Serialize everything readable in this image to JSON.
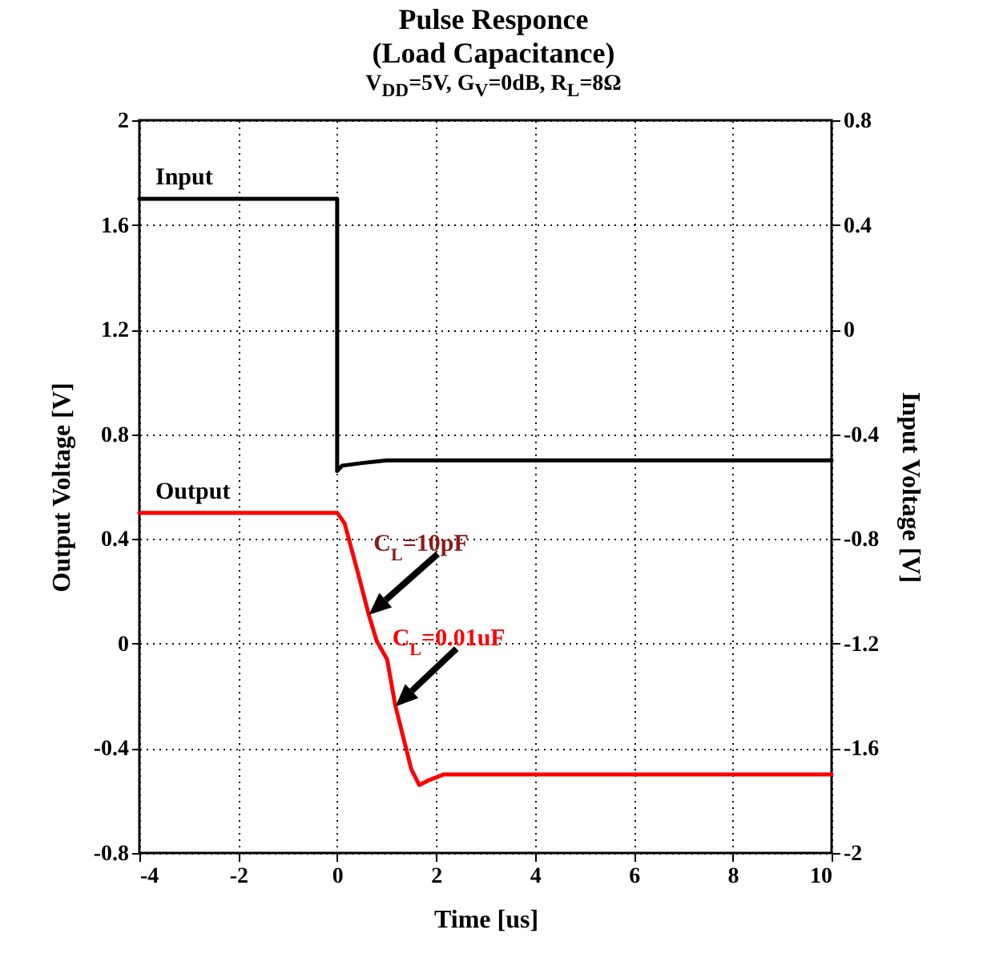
{
  "chart_data": {
    "type": "line",
    "title": "Pulse Responce\n(Load Capacitance)",
    "subtitle": "V$_{DD}$=5V, G$_{V}$=0dB, R$_{L}$=8Ω",
    "xlabel": "Time [us]",
    "ylabel": "Output Voltage [V]",
    "y2label": "Input Voltage [V]",
    "xlim": [
      -4,
      10
    ],
    "xticks": [
      -4,
      -2,
      0,
      2,
      4,
      6,
      8,
      10
    ],
    "ylim": [
      -0.8,
      2
    ],
    "yticks": [
      -0.8,
      -0.4,
      0,
      0.4,
      0.8,
      1.2,
      1.6,
      2
    ],
    "y2lim": [
      -2,
      0.8
    ],
    "y2ticks": [
      -2,
      -1.6,
      -1.2,
      -0.8,
      -0.4,
      0,
      0.4,
      0.8
    ],
    "grid": true,
    "legend": false,
    "annotations": [
      {
        "text": "C$_{L}$=10pF",
        "x": 0.64,
        "y": 0.11
      },
      {
        "text": "C$_{L}$=0.01uF",
        "x": 1.18,
        "y": -0.24
      }
    ],
    "series": [
      {
        "name": "Input",
        "color": "#000000",
        "axis": "y2",
        "x": [
          -4,
          0,
          0,
          0.1,
          0.5,
          1,
          2,
          10
        ],
        "values": [
          0.5,
          0.5,
          -0.54,
          -0.52,
          -0.51,
          -0.5,
          -0.5,
          -0.5
        ]
      },
      {
        "name": "Output",
        "color": "#ff0000",
        "x": [
          -4,
          0,
          0.15,
          0.42,
          0.64,
          0.8,
          1.01,
          1.18,
          1.34,
          1.5,
          1.66,
          1.88,
          2.15,
          10
        ],
        "values": [
          0.5,
          0.5,
          0.46,
          0.27,
          0.11,
          0.01,
          -0.06,
          -0.24,
          -0.36,
          -0.48,
          -0.54,
          -0.52,
          -0.5,
          -0.5
        ]
      }
    ]
  }
}
